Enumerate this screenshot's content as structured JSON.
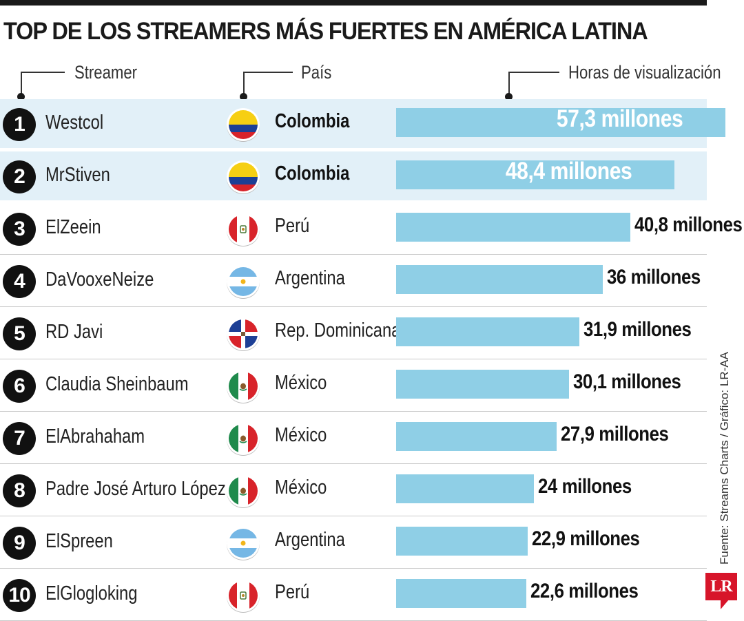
{
  "title": "TOP DE LOS STREAMERS MÁS FUERTES EN AMÉRICA LATINA",
  "headers": {
    "streamer": "Streamer",
    "pais": "País",
    "horas": "Horas de visualización"
  },
  "source": "Fuente: Streams Charts / Gráfico: LR-AA",
  "logo": "LR",
  "colors": {
    "bar": "#8fcfe6",
    "highlight": "#e2f0f8",
    "rank_circle": "#111111",
    "logo": "#d7152a"
  },
  "chart_data": {
    "type": "bar",
    "orientation": "horizontal",
    "unit": "millones de horas",
    "rows": [
      {
        "rank": "1",
        "streamer": "Westcol",
        "country": "Colombia",
        "flag": "colombia-flag-icon",
        "value": 57.3,
        "label": "57,3 millones"
      },
      {
        "rank": "2",
        "streamer": "MrStiven",
        "country": "Colombia",
        "flag": "colombia-flag-icon",
        "value": 48.4,
        "label": "48,4 millones"
      },
      {
        "rank": "3",
        "streamer": "ElZeein",
        "country": "Perú",
        "flag": "peru-flag-icon",
        "value": 40.8,
        "label": "40,8 millones"
      },
      {
        "rank": "4",
        "streamer": "DaVooxeNeize",
        "country": "Argentina",
        "flag": "argentina-flag-icon",
        "value": 36,
        "label": "36 millones"
      },
      {
        "rank": "5",
        "streamer": "RD Javi",
        "country": "Rep. Dominicana",
        "flag": "dominican-republic-flag-icon",
        "value": 31.9,
        "label": "31,9 millones"
      },
      {
        "rank": "6",
        "streamer": "Claudia Sheinbaum",
        "country": "México",
        "flag": "mexico-flag-icon",
        "value": 30.1,
        "label": "30,1 millones"
      },
      {
        "rank": "7",
        "streamer": "ElAbrahaham",
        "country": "México",
        "flag": "mexico-flag-icon",
        "value": 27.9,
        "label": "27,9 millones"
      },
      {
        "rank": "8",
        "streamer": "Padre José Arturo López",
        "country": "México",
        "flag": "mexico-flag-icon",
        "value": 24,
        "label": "24 millones"
      },
      {
        "rank": "9",
        "streamer": "ElSpreen",
        "country": "Argentina",
        "flag": "argentina-flag-icon",
        "value": 22.9,
        "label": "22,9 millones"
      },
      {
        "rank": "10",
        "streamer": "ElGlogloking",
        "country": "Perú",
        "flag": "peru-flag-icon",
        "value": 22.6,
        "label": "22,6 millones"
      }
    ]
  }
}
